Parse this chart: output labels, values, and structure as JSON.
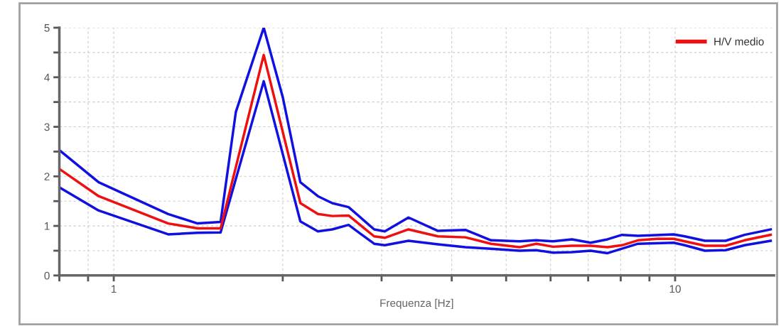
{
  "chart_data": {
    "type": "line",
    "xlabel": "Frequenza [Hz]",
    "log": "x",
    "xlim": [
      0.8,
      15
    ],
    "ylim": [
      0,
      5
    ],
    "xticks": [
      {
        "value": 0.8,
        "label": null
      },
      {
        "value": 0.9,
        "label": null
      },
      1,
      {
        "value": 2,
        "label": null
      },
      {
        "value": 3,
        "label": null
      },
      {
        "value": 4,
        "label": null
      },
      {
        "value": 5,
        "label": null
      },
      {
        "value": 6,
        "label": null
      },
      {
        "value": 7,
        "label": null
      },
      {
        "value": 8,
        "label": null
      },
      {
        "value": 9,
        "label": null
      },
      10
    ],
    "yticks": [
      0,
      {
        "value": 0.5,
        "label": null
      },
      1,
      {
        "value": 1.5,
        "label": null
      },
      2,
      {
        "value": 2.5,
        "label": null
      },
      3,
      {
        "value": 3.5,
        "label": null
      },
      4,
      {
        "value": 4.5,
        "label": null
      },
      5
    ],
    "grid": true,
    "legend": "top right",
    "line_style": "solid",
    "marker": "none",
    "series": [
      {
        "color": "#1010e0",
        "x": [
          0.8,
          0.94,
          1.25,
          1.41,
          1.55,
          1.65,
          1.85,
          2.0,
          2.15,
          2.31,
          2.45,
          2.62,
          2.91,
          3.04,
          3.35,
          3.78,
          4.23,
          4.7,
          5.28,
          5.66,
          6.06,
          6.55,
          7.07,
          7.58,
          8.04,
          8.59,
          9.94,
          10.4,
          11.3,
          12.3,
          13.3,
          14.8
        ],
        "values": [
          2.53,
          1.88,
          1.24,
          1.05,
          1.08,
          3.3,
          5.0,
          3.6,
          1.88,
          1.6,
          1.46,
          1.38,
          0.93,
          0.89,
          1.17,
          0.9,
          0.92,
          0.71,
          0.69,
          0.71,
          0.69,
          0.73,
          0.66,
          0.73,
          0.82,
          0.8,
          0.83,
          0.79,
          0.7,
          0.7,
          0.82,
          0.93
        ]
      },
      {
        "color": "#1010e0",
        "x": [
          0.8,
          0.94,
          1.25,
          1.41,
          1.55,
          1.85,
          2.15,
          2.31,
          2.45,
          2.62,
          2.91,
          3.04,
          3.35,
          3.78,
          4.23,
          4.7,
          5.28,
          5.66,
          6.06,
          6.55,
          7.07,
          7.58,
          8.04,
          8.59,
          9.94,
          10.4,
          11.3,
          12.3,
          13.3,
          14.8
        ],
        "values": [
          1.78,
          1.31,
          0.83,
          0.86,
          0.87,
          3.92,
          1.09,
          0.89,
          0.93,
          1.02,
          0.64,
          0.61,
          0.7,
          0.63,
          0.57,
          0.54,
          0.5,
          0.51,
          0.46,
          0.47,
          0.5,
          0.45,
          0.54,
          0.64,
          0.66,
          0.61,
          0.5,
          0.51,
          0.61,
          0.7
        ]
      },
      {
        "name": "H/V medio",
        "color": "#ee1010",
        "x": [
          0.8,
          0.94,
          1.25,
          1.41,
          1.55,
          1.85,
          2.15,
          2.31,
          2.45,
          2.62,
          2.91,
          3.04,
          3.35,
          3.78,
          4.23,
          4.7,
          5.28,
          5.66,
          6.06,
          6.55,
          7.07,
          7.58,
          8.04,
          8.59,
          9.29,
          9.94,
          10.4,
          11.3,
          12.3,
          13.3,
          14.8
        ],
        "values": [
          2.15,
          1.6,
          1.05,
          0.95,
          0.95,
          4.45,
          1.46,
          1.24,
          1.2,
          1.21,
          0.79,
          0.76,
          0.93,
          0.79,
          0.77,
          0.64,
          0.57,
          0.64,
          0.58,
          0.6,
          0.6,
          0.57,
          0.61,
          0.71,
          0.74,
          0.74,
          0.69,
          0.6,
          0.6,
          0.71,
          0.82
        ]
      }
    ]
  }
}
